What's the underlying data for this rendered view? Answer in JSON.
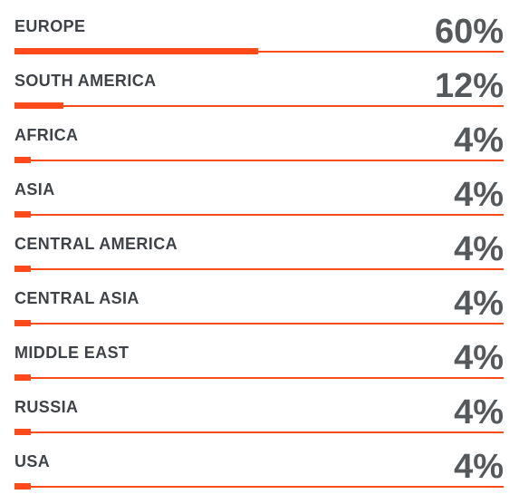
{
  "chart_data": {
    "type": "bar",
    "categories": [
      "EUROPE",
      "SOUTH AMERICA",
      "AFRICA",
      "ASIA",
      "CENTRAL AMERICA",
      "CENTRAL ASIA",
      "MIDDLE EAST",
      "RUSSIA",
      "USA"
    ],
    "values": [
      60,
      12,
      4,
      4,
      4,
      4,
      4,
      4,
      4
    ],
    "value_labels": [
      "60%",
      "12%",
      "4%",
      "4%",
      "4%",
      "4%",
      "4%",
      "4%",
      "4%"
    ],
    "xlim": [
      0,
      100
    ],
    "colors": {
      "bar": "#ff4a1c",
      "label": "#3f4347",
      "value": "#55595c"
    },
    "grid": false,
    "legend": "none"
  }
}
